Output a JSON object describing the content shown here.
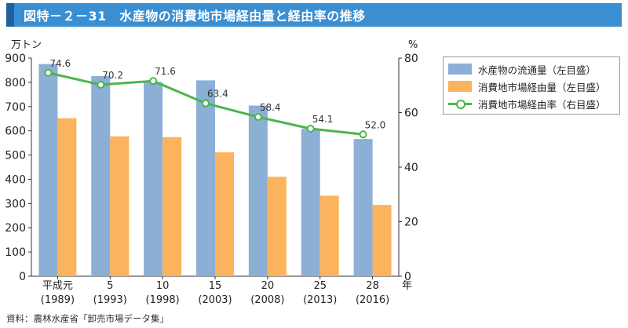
{
  "title": "図特－２－31　水産物の消費地市場経由量と経由率の推移",
  "source": "資料：農林水産省「卸売市場データ集」",
  "left_unit": "万トン",
  "right_unit": "%",
  "year_suffix": "年",
  "legend": [
    {
      "label": "水産物の流通量（左目盛）",
      "color": "#8cafd6"
    },
    {
      "label": "消費地市場経由量（左目盛）",
      "color": "#fbb35e"
    },
    {
      "label": "消費地市場経由率（右目盛）",
      "color": "#4bb54b"
    }
  ],
  "chart_data": {
    "type": "bar",
    "categories": [
      "平成元",
      "5",
      "10",
      "15",
      "20",
      "25",
      "28"
    ],
    "categories_sub": [
      "(1989)",
      "(1993)",
      "(1998)",
      "(2003)",
      "(2008)",
      "(2013)",
      "(2016)"
    ],
    "series": [
      {
        "name": "水産物の流通量（左目盛）",
        "axis": "left",
        "type": "bar",
        "color": "#8cafd6",
        "values": [
          875,
          826,
          800,
          808,
          704,
          608,
          566
        ]
      },
      {
        "name": "消費地市場経由量（左目盛）",
        "axis": "left",
        "type": "bar",
        "color": "#fbb35e",
        "values": [
          652,
          577,
          574,
          511,
          410,
          332,
          294
        ]
      },
      {
        "name": "消費地市場経由率（右目盛）",
        "axis": "right",
        "type": "line",
        "color": "#4bb54b",
        "values": [
          74.6,
          70.2,
          71.6,
          63.4,
          58.4,
          54.1,
          52.0
        ],
        "labels": [
          "74.6",
          "70.2",
          "71.6",
          "63.4",
          "58.4",
          "54.1",
          "52.0"
        ]
      }
    ],
    "ylim_left": [
      0,
      900
    ],
    "yticks_left": [
      0,
      100,
      200,
      300,
      400,
      500,
      600,
      700,
      800,
      900
    ],
    "ylim_right": [
      0,
      80
    ],
    "yticks_right": [
      0,
      20,
      40,
      60,
      80
    ],
    "legend_position": "top-right",
    "grid": false
  }
}
